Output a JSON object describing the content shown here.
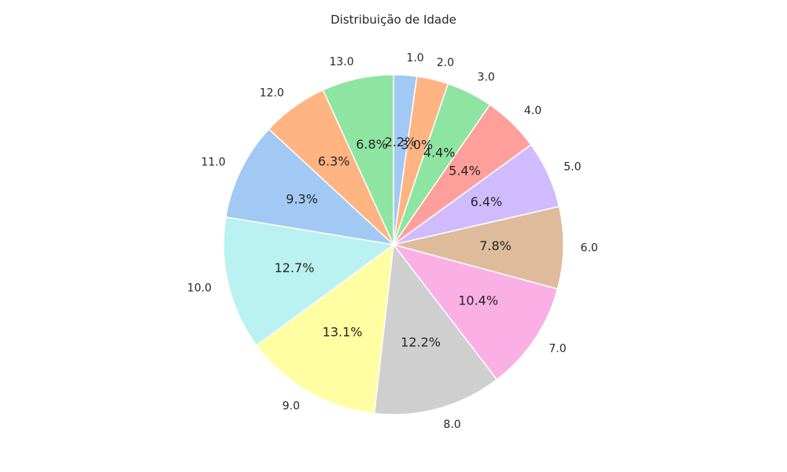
{
  "chart_data": {
    "type": "pie",
    "title": "Distribuição de Idade",
    "categories": [
      "1.0",
      "2.0",
      "3.0",
      "4.0",
      "5.0",
      "6.0",
      "7.0",
      "8.0",
      "9.0",
      "10.0",
      "11.0",
      "12.0",
      "13.0"
    ],
    "values": [
      2.2,
      3.0,
      4.4,
      5.4,
      6.4,
      7.8,
      10.4,
      12.2,
      13.1,
      12.7,
      9.3,
      6.3,
      6.8
    ],
    "value_labels": [
      "2.2%",
      "3.0%",
      "4.4%",
      "5.4%",
      "6.4%",
      "7.8%",
      "10.4%",
      "12.2%",
      "13.1%",
      "12.7%",
      "9.3%",
      "6.3%",
      "6.8%"
    ],
    "colors": [
      "#a1c9f4",
      "#ffb482",
      "#8de5a1",
      "#ff9f9b",
      "#d0bbff",
      "#debb9b",
      "#fab0e4",
      "#cfcfcf",
      "#fffea3",
      "#b9f2f0",
      "#a1c9f4",
      "#ffb482",
      "#8de5a1"
    ],
    "start_angle_deg": 90,
    "direction": "clockwise",
    "legend": "none"
  }
}
